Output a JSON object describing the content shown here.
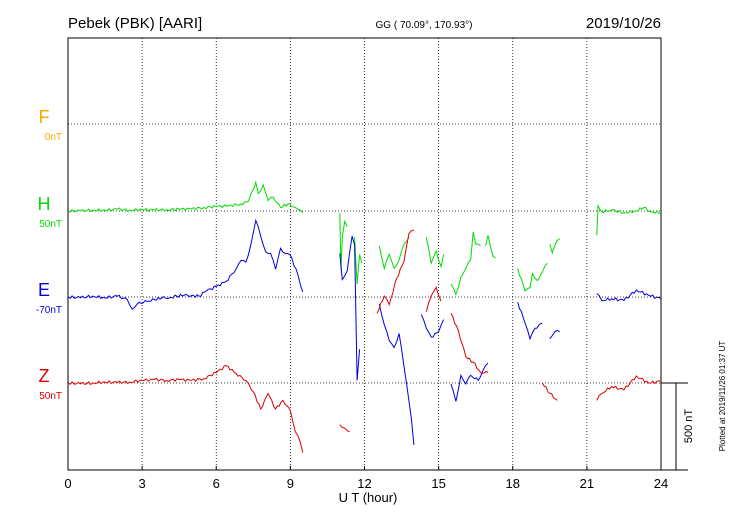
{
  "header": {
    "station": "Pebek (PBK)  [AARI]",
    "coords": "GG ( 70.09°, 170.93°)",
    "date": "2019/10/26"
  },
  "footer": {
    "plotted": "Plotted at 2019/11/26 01:37 UT"
  },
  "chart_data": {
    "type": "line",
    "title": "Pebek (PBK)  [AARI]",
    "xlabel": "U T (hour)",
    "xlim": [
      0,
      24
    ],
    "xticks": [
      0,
      3,
      6,
      9,
      12,
      15,
      18,
      21,
      24
    ],
    "grid": true,
    "scale_bar": {
      "label": "500 nT",
      "value_nT": 500
    },
    "channels": [
      {
        "name": "F",
        "baseline": "0nT",
        "baseline_nT": 0,
        "color": "#ffa500"
      },
      {
        "name": "H",
        "baseline": "50nT",
        "baseline_nT": 50,
        "color": "#00dd00"
      },
      {
        "name": "E",
        "baseline": "-70nT",
        "baseline_nT": -70,
        "color": "#0000dd"
      },
      {
        "name": "Z",
        "baseline": "50nT",
        "baseline_nT": 50,
        "color": "#dd0000"
      }
    ],
    "series": [
      {
        "name": "H",
        "color": "#00dd00",
        "segments": [
          [
            [
              0,
              0
            ],
            [
              0.5,
              0
            ],
            [
              1,
              5
            ],
            [
              1.5,
              4
            ],
            [
              2,
              10
            ],
            [
              2.5,
              5
            ],
            [
              3,
              8
            ],
            [
              3.5,
              6
            ],
            [
              4,
              8
            ],
            [
              4.5,
              10
            ],
            [
              5,
              12
            ],
            [
              5.5,
              20
            ],
            [
              6,
              25
            ],
            [
              6.5,
              30
            ],
            [
              7,
              40
            ],
            [
              7.3,
              55
            ],
            [
              7.6,
              165
            ],
            [
              7.7,
              100
            ],
            [
              7.9,
              150
            ],
            [
              8.1,
              60
            ],
            [
              8.3,
              80
            ],
            [
              8.6,
              20
            ],
            [
              8.9,
              40
            ],
            [
              9.2,
              20
            ],
            [
              9.4,
              5
            ],
            [
              9.5,
              -10
            ]
          ],
          [
            [
              11,
              -10
            ],
            [
              11.05,
              -340
            ],
            [
              11.1,
              -150
            ],
            [
              11.2,
              -60
            ],
            [
              11.3,
              -90
            ]
          ],
          [
            [
              11.6,
              -150
            ],
            [
              11.7,
              -420
            ],
            [
              11.8,
              -250
            ],
            [
              11.9,
              -300
            ]
          ],
          [
            [
              12.6,
              -200
            ],
            [
              12.8,
              -330
            ],
            [
              13,
              -250
            ],
            [
              13.2,
              -330
            ],
            [
              13.4,
              -280
            ],
            [
              13.5,
              -230
            ],
            [
              13.6,
              -190
            ],
            [
              13.8,
              -150
            ]
          ],
          [
            [
              14.5,
              -150
            ],
            [
              14.7,
              -300
            ],
            [
              14.9,
              -230
            ],
            [
              15.1,
              -320
            ],
            [
              15.2,
              -250
            ]
          ],
          [
            [
              15.5,
              -420
            ],
            [
              15.7,
              -480
            ],
            [
              15.9,
              -380
            ],
            [
              16.1,
              -330
            ],
            [
              16.3,
              -280
            ],
            [
              16.4,
              -120
            ],
            [
              16.5,
              -190
            ],
            [
              16.7,
              -200
            ]
          ],
          [
            [
              16.9,
              -200
            ],
            [
              17.0,
              -140
            ],
            [
              17.2,
              -260
            ],
            [
              17.3,
              -270
            ]
          ],
          [
            [
              18.2,
              -330
            ],
            [
              18.5,
              -460
            ],
            [
              18.7,
              -440
            ],
            [
              18.8,
              -360
            ],
            [
              19.0,
              -400
            ],
            [
              19.2,
              -350
            ],
            [
              19.4,
              -300
            ]
          ],
          [
            [
              19.5,
              -190
            ],
            [
              19.6,
              -240
            ],
            [
              19.8,
              -170
            ],
            [
              19.9,
              -160
            ]
          ],
          [
            [
              21.4,
              -140
            ],
            [
              21.45,
              30
            ],
            [
              21.6,
              -5
            ],
            [
              22.0,
              5
            ],
            [
              22.5,
              -10
            ],
            [
              23,
              0
            ],
            [
              23.3,
              20
            ],
            [
              23.6,
              -5
            ],
            [
              24,
              -10
            ]
          ]
        ]
      },
      {
        "name": "E",
        "color": "#0000dd",
        "segments": [
          [
            [
              0,
              0
            ],
            [
              0.5,
              -5
            ],
            [
              1,
              5
            ],
            [
              1.5,
              -5
            ],
            [
              2,
              5
            ],
            [
              2.4,
              -15
            ],
            [
              2.6,
              -70
            ],
            [
              2.8,
              -40
            ],
            [
              3.2,
              -25
            ],
            [
              3.5,
              -15
            ],
            [
              3.8,
              -5
            ],
            [
              4.1,
              -5
            ],
            [
              4.4,
              5
            ],
            [
              4.7,
              10
            ],
            [
              5,
              8
            ],
            [
              5.3,
              5
            ],
            [
              5.6,
              35
            ],
            [
              6,
              60
            ],
            [
              6.4,
              90
            ],
            [
              6.8,
              160
            ],
            [
              7,
              210
            ],
            [
              7.2,
              200
            ],
            [
              7.4,
              300
            ],
            [
              7.6,
              440
            ],
            [
              7.8,
              350
            ],
            [
              8,
              260
            ],
            [
              8.2,
              250
            ],
            [
              8.4,
              160
            ],
            [
              8.6,
              280
            ],
            [
              8.8,
              250
            ],
            [
              9.0,
              240
            ],
            [
              9.3,
              130
            ],
            [
              9.5,
              30
            ]
          ],
          [
            [
              11,
              250
            ],
            [
              11.1,
              100
            ],
            [
              11.3,
              150
            ],
            [
              11.5,
              350
            ],
            [
              11.6,
              300
            ],
            [
              11.7,
              -480
            ],
            [
              11.8,
              -300
            ]
          ],
          [
            [
              12.6,
              -40
            ],
            [
              12.8,
              -160
            ],
            [
              13,
              -250
            ],
            [
              13.2,
              -290
            ],
            [
              13.4,
              -210
            ],
            [
              13.6,
              -400
            ],
            [
              13.8,
              -600
            ],
            [
              13.9,
              -700
            ],
            [
              14,
              -850
            ]
          ],
          [
            [
              14.3,
              -100
            ],
            [
              14.5,
              -180
            ],
            [
              14.7,
              -230
            ],
            [
              15,
              -200
            ],
            [
              15.2,
              -130
            ]
          ],
          [
            [
              15.5,
              -500
            ],
            [
              15.7,
              -600
            ],
            [
              15.9,
              -450
            ],
            [
              16.1,
              -500
            ],
            [
              16.3,
              -450
            ],
            [
              16.6,
              -480
            ],
            [
              16.8,
              -420
            ],
            [
              17.0,
              -380
            ]
          ],
          [
            [
              18.2,
              -30
            ],
            [
              18.5,
              -150
            ],
            [
              18.7,
              -240
            ],
            [
              18.9,
              -180
            ],
            [
              19.2,
              -150
            ]
          ],
          [
            [
              19.5,
              -240
            ],
            [
              19.7,
              -200
            ],
            [
              19.9,
              -200
            ]
          ],
          [
            [
              21.4,
              20
            ],
            [
              21.6,
              -20
            ],
            [
              22,
              -10
            ],
            [
              22.5,
              -20
            ],
            [
              23,
              40
            ],
            [
              23.5,
              10
            ],
            [
              24,
              -10
            ]
          ]
        ]
      },
      {
        "name": "Z",
        "color": "#dd0000",
        "segments": [
          [
            [
              0,
              0
            ],
            [
              0.5,
              -5
            ],
            [
              1,
              0
            ],
            [
              1.5,
              5
            ],
            [
              2,
              3
            ],
            [
              2.5,
              5
            ],
            [
              3,
              15
            ],
            [
              3.5,
              20
            ],
            [
              4,
              15
            ],
            [
              4.5,
              20
            ],
            [
              5,
              15
            ],
            [
              5.5,
              25
            ],
            [
              6,
              60
            ],
            [
              6.4,
              100
            ],
            [
              6.8,
              55
            ],
            [
              7.2,
              15
            ],
            [
              7.5,
              -50
            ],
            [
              7.8,
              -150
            ],
            [
              8.1,
              -60
            ],
            [
              8.4,
              -150
            ],
            [
              8.7,
              -100
            ],
            [
              9,
              -160
            ],
            [
              9.2,
              -280
            ],
            [
              9.4,
              -340
            ],
            [
              9.5,
              -400
            ]
          ],
          [
            [
              11,
              -240
            ],
            [
              11.2,
              -260
            ],
            [
              11.4,
              -280
            ]
          ],
          [
            [
              12.5,
              400
            ],
            [
              12.8,
              500
            ],
            [
              13,
              450
            ],
            [
              13.3,
              600
            ],
            [
              13.6,
              700
            ],
            [
              13.8,
              860
            ],
            [
              14,
              880
            ]
          ],
          [
            [
              14.5,
              410
            ],
            [
              14.7,
              500
            ],
            [
              14.9,
              550
            ],
            [
              15.1,
              470
            ]
          ],
          [
            [
              15.5,
              400
            ],
            [
              15.8,
              300
            ],
            [
              16.1,
              150
            ],
            [
              16.4,
              120
            ],
            [
              16.7,
              60
            ],
            [
              17.0,
              60
            ]
          ],
          [
            [
              19.2,
              0
            ],
            [
              19.5,
              -60
            ],
            [
              19.8,
              -100
            ]
          ],
          [
            [
              21.4,
              -100
            ],
            [
              21.6,
              -60
            ],
            [
              22,
              -20
            ],
            [
              22.5,
              -40
            ],
            [
              23,
              40
            ],
            [
              23.5,
              0
            ],
            [
              24,
              10
            ]
          ]
        ]
      }
    ]
  }
}
